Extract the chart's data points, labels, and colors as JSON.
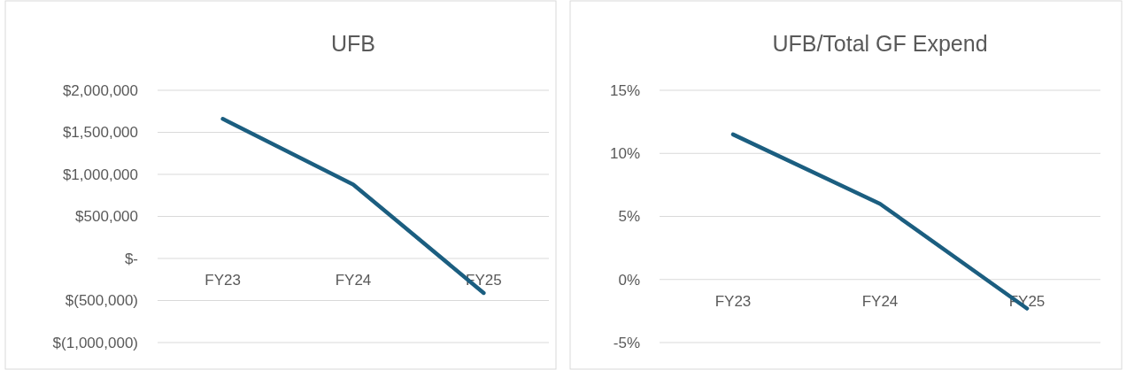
{
  "chart_data": [
    {
      "type": "line",
      "title": "UFB",
      "categories": [
        "FY23",
        "FY24",
        "FY25"
      ],
      "series": [
        {
          "color": "#1b5e80",
          "values": [
            1660000,
            880000,
            -410000
          ]
        }
      ],
      "ylim": [
        -1000000,
        2000000
      ],
      "yticks": [
        {
          "value": -1000000,
          "label": "$(1,000,000)"
        },
        {
          "value": -500000,
          "label": "$(500,000)"
        },
        {
          "value": 0,
          "label": "$-"
        },
        {
          "value": 500000,
          "label": "$500,000"
        },
        {
          "value": 1000000,
          "label": "$1,000,000"
        },
        {
          "value": 1500000,
          "label": "$1,500,000"
        },
        {
          "value": 2000000,
          "label": "$2,000,000"
        }
      ],
      "grid": "y",
      "marker": "none",
      "line_style": "solid"
    },
    {
      "type": "line",
      "title": "UFB/Total GF Expend",
      "categories": [
        "FY23",
        "FY24",
        "FY25"
      ],
      "series": [
        {
          "color": "#1b5e80",
          "values": [
            11.5,
            6.0,
            -2.3
          ]
        }
      ],
      "ylim": [
        -5,
        15
      ],
      "yticks": [
        {
          "value": -5,
          "label": "-5%"
        },
        {
          "value": 0,
          "label": "0%"
        },
        {
          "value": 5,
          "label": "5%"
        },
        {
          "value": 10,
          "label": "10%"
        },
        {
          "value": 15,
          "label": "15%"
        }
      ],
      "grid": "y",
      "marker": "none",
      "line_style": "solid"
    }
  ]
}
